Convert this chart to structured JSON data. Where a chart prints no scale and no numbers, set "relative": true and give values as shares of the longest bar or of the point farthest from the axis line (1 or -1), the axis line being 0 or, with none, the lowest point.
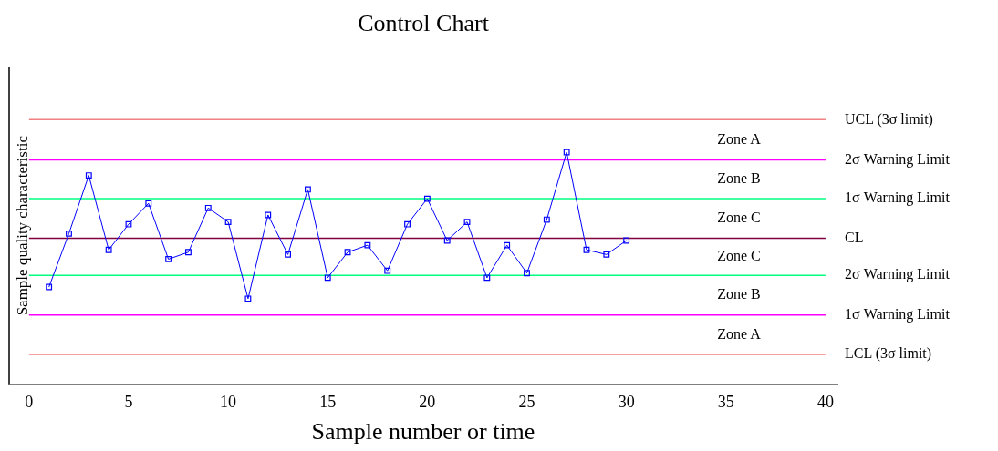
{
  "chart_data": {
    "type": "line",
    "title": "Control Chart",
    "xlabel": "Sample number or time",
    "ylabel": "Sample quality characteristic",
    "relative": true,
    "x": [
      1,
      2,
      3,
      4,
      5,
      6,
      7,
      8,
      9,
      10,
      11,
      12,
      13,
      14,
      15,
      16,
      17,
      18,
      19,
      20,
      21,
      22,
      23,
      24,
      25,
      26,
      27,
      28,
      29,
      30
    ],
    "series": [
      {
        "color": "#0000ff",
        "values": [
          0.42,
          0.65,
          0.9,
          0.58,
          0.69,
          0.78,
          0.54,
          0.57,
          0.76,
          0.7,
          0.37,
          0.73,
          0.56,
          0.84,
          0.46,
          0.57,
          0.6,
          0.49,
          0.69,
          0.8,
          0.62,
          0.7,
          0.46,
          0.6,
          0.48,
          0.71,
          1.0,
          0.58,
          0.56,
          0.62
        ]
      }
    ],
    "xlim": [
      -1,
      40.6
    ],
    "xticks": [
      0,
      5,
      10,
      15,
      20,
      25,
      30,
      35,
      40
    ],
    "ref_lines": [
      {
        "axis": "y",
        "value": 1.14,
        "label": "UCL (3σ limit)",
        "color": "#f08080"
      },
      {
        "axis": "y",
        "value": 0.967,
        "label": "2σ Warning Limit",
        "color": "#ff00ff"
      },
      {
        "axis": "y",
        "value": 0.8,
        "label": "1σ Warning Limit",
        "color": "#00ff80"
      },
      {
        "axis": "y",
        "value": 0.63,
        "label": "CL",
        "color": "#800040"
      },
      {
        "axis": "y",
        "value": 0.47,
        "label": "2σ Warning Limit",
        "color": "#00ff80"
      },
      {
        "axis": "y",
        "value": 0.3,
        "label": "1σ Warning Limit",
        "color": "#ff00ff"
      },
      {
        "axis": "y",
        "value": 0.13,
        "label": "LCL (3σ limit)",
        "color": "#f08080"
      }
    ],
    "annotations": [
      "Zone A",
      "Zone B",
      "Zone C",
      "Zone C",
      "Zone B",
      "Zone A"
    ],
    "marker": "square",
    "line_style": "solid",
    "grid": false,
    "legend": false
  }
}
